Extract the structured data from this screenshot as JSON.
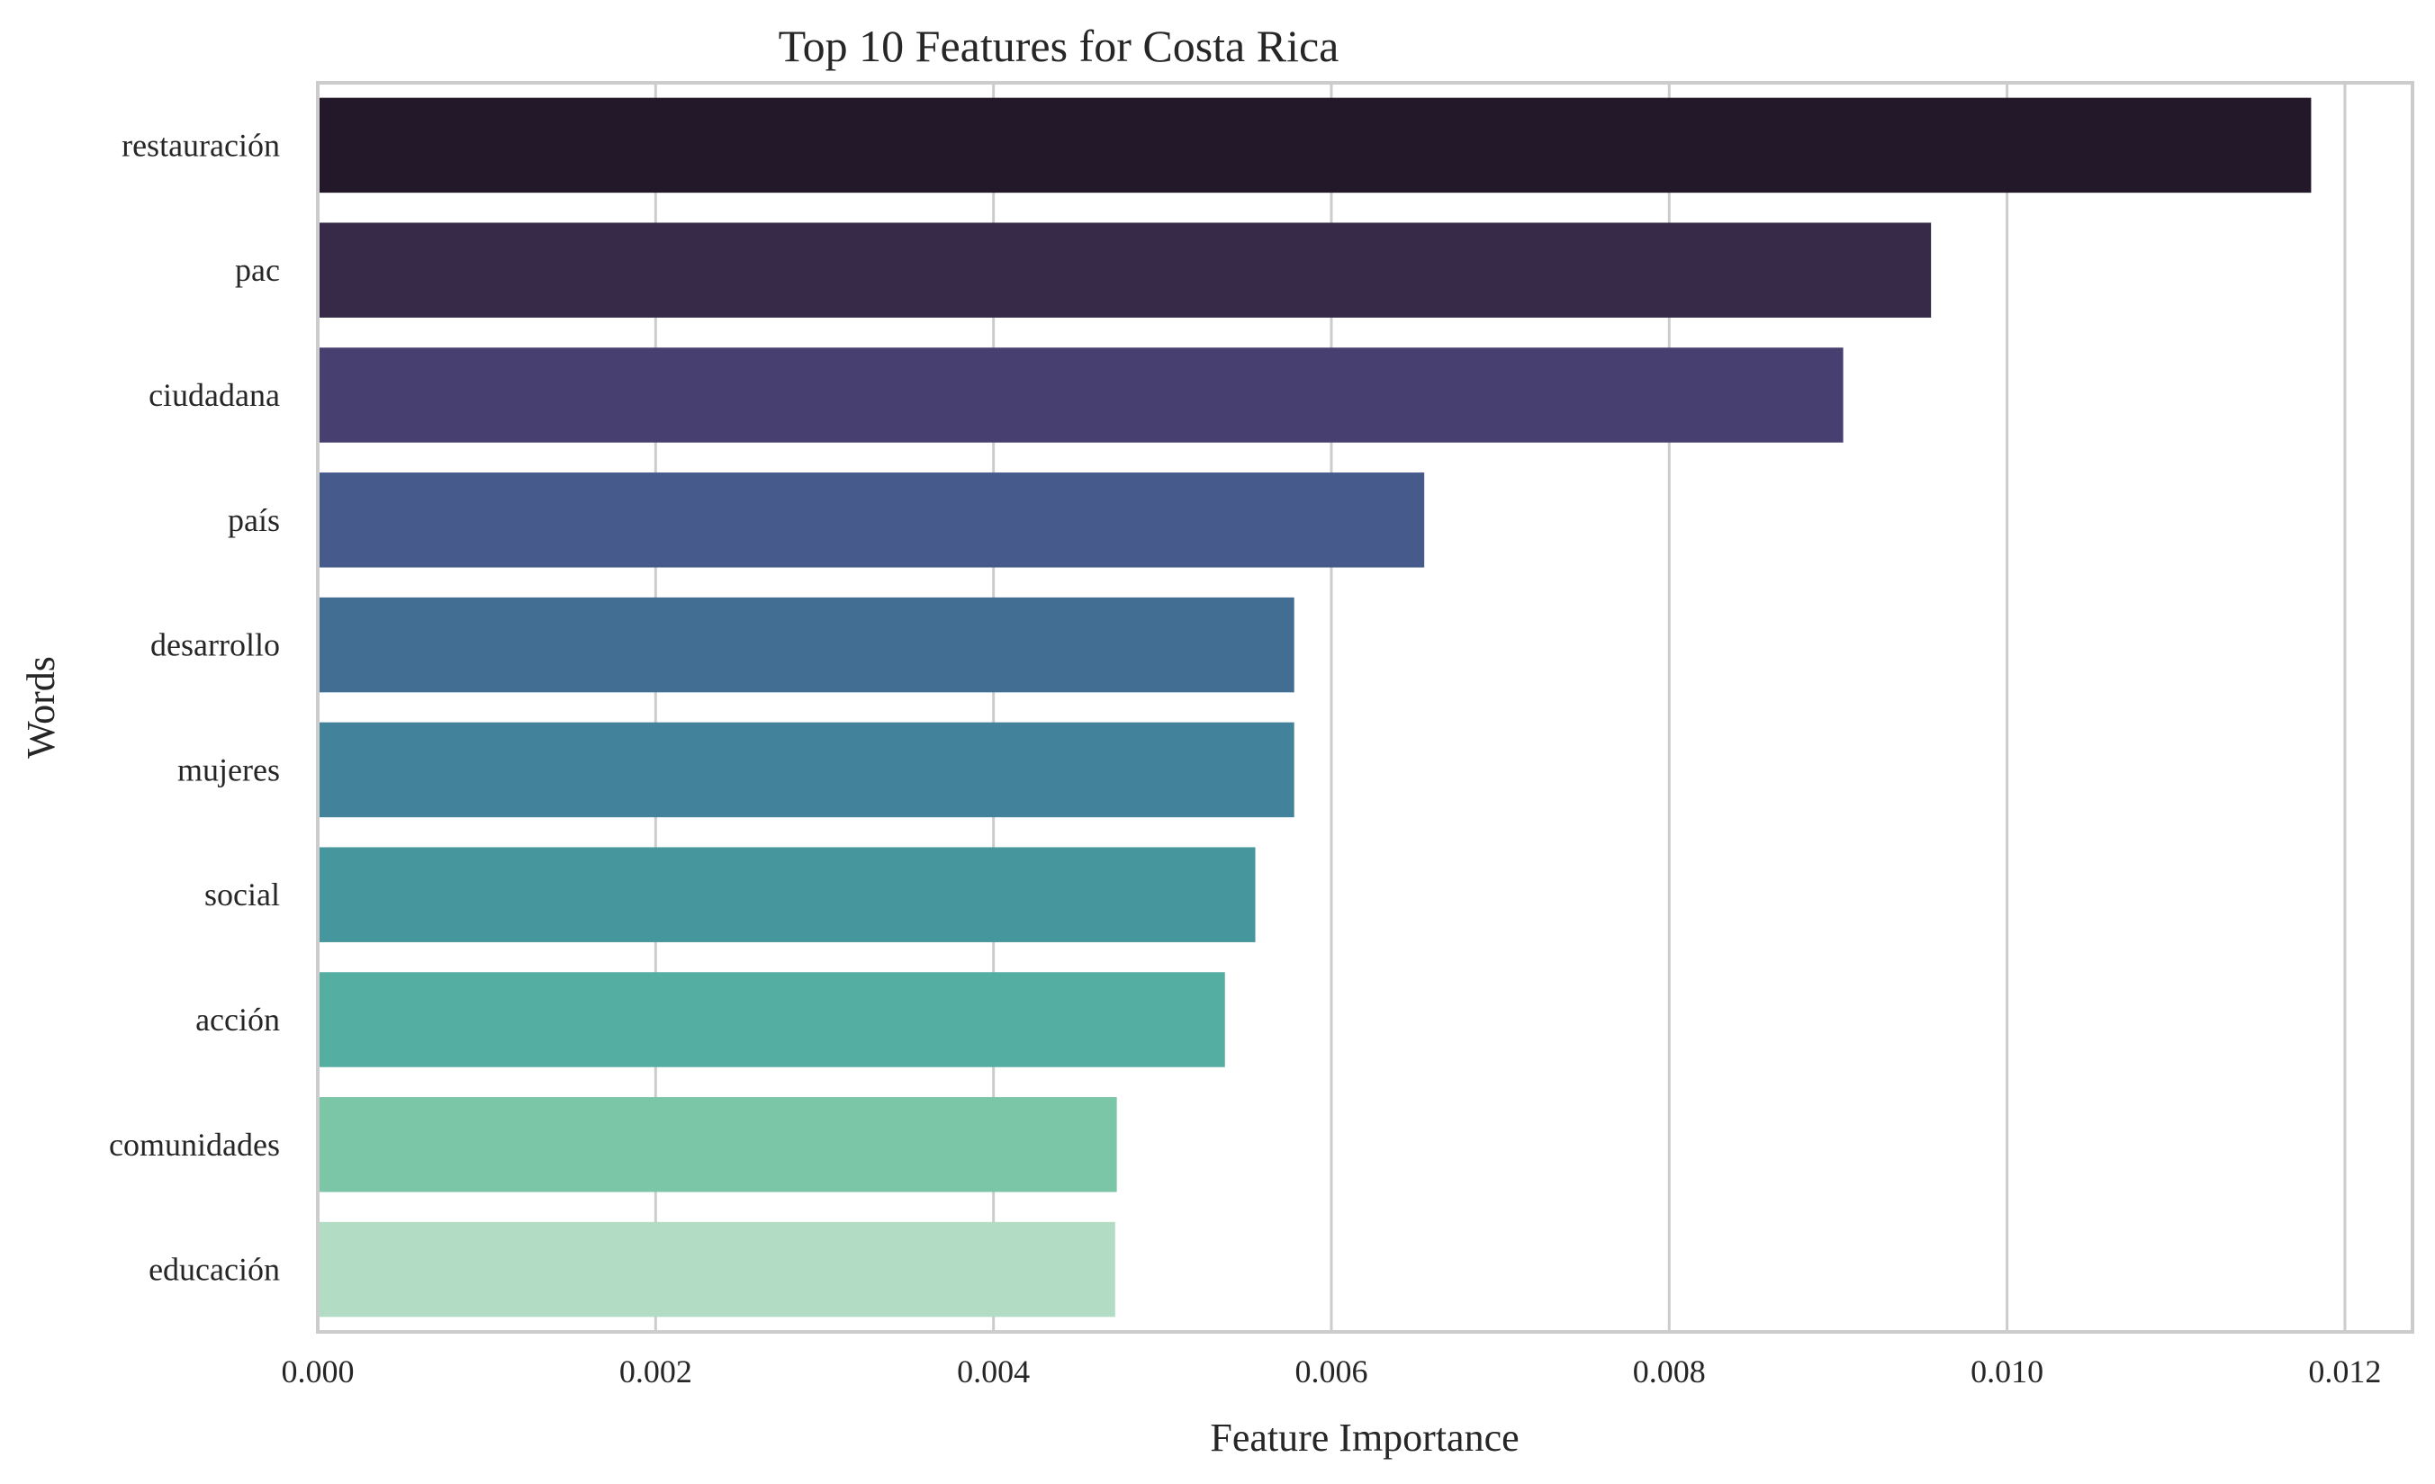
{
  "chart_data": {
    "type": "bar",
    "orientation": "horizontal",
    "title": "Top 10 Features for Costa Rica",
    "xlabel": "Feature Importance",
    "ylabel": "Words",
    "categories": [
      "restauración",
      "pac",
      "ciudadana",
      "país",
      "desarrollo",
      "mujeres",
      "social",
      "acción",
      "comunidades",
      "educación"
    ],
    "values": [
      0.0118,
      0.00955,
      0.00903,
      0.00655,
      0.00578,
      0.00578,
      0.00555,
      0.00537,
      0.00473,
      0.00472
    ],
    "colors": [
      "#231829",
      "#362a48",
      "#473f70",
      "#465a8c",
      "#426e94",
      "#42829a",
      "#46979d",
      "#54aea2",
      "#7cc6a8",
      "#b2dcc3"
    ],
    "xlim": [
      0,
      0.0124
    ],
    "xticks": [
      "0.000",
      "0.002",
      "0.004",
      "0.006",
      "0.008",
      "0.010",
      "0.012"
    ],
    "grid": true,
    "legend": "none"
  }
}
